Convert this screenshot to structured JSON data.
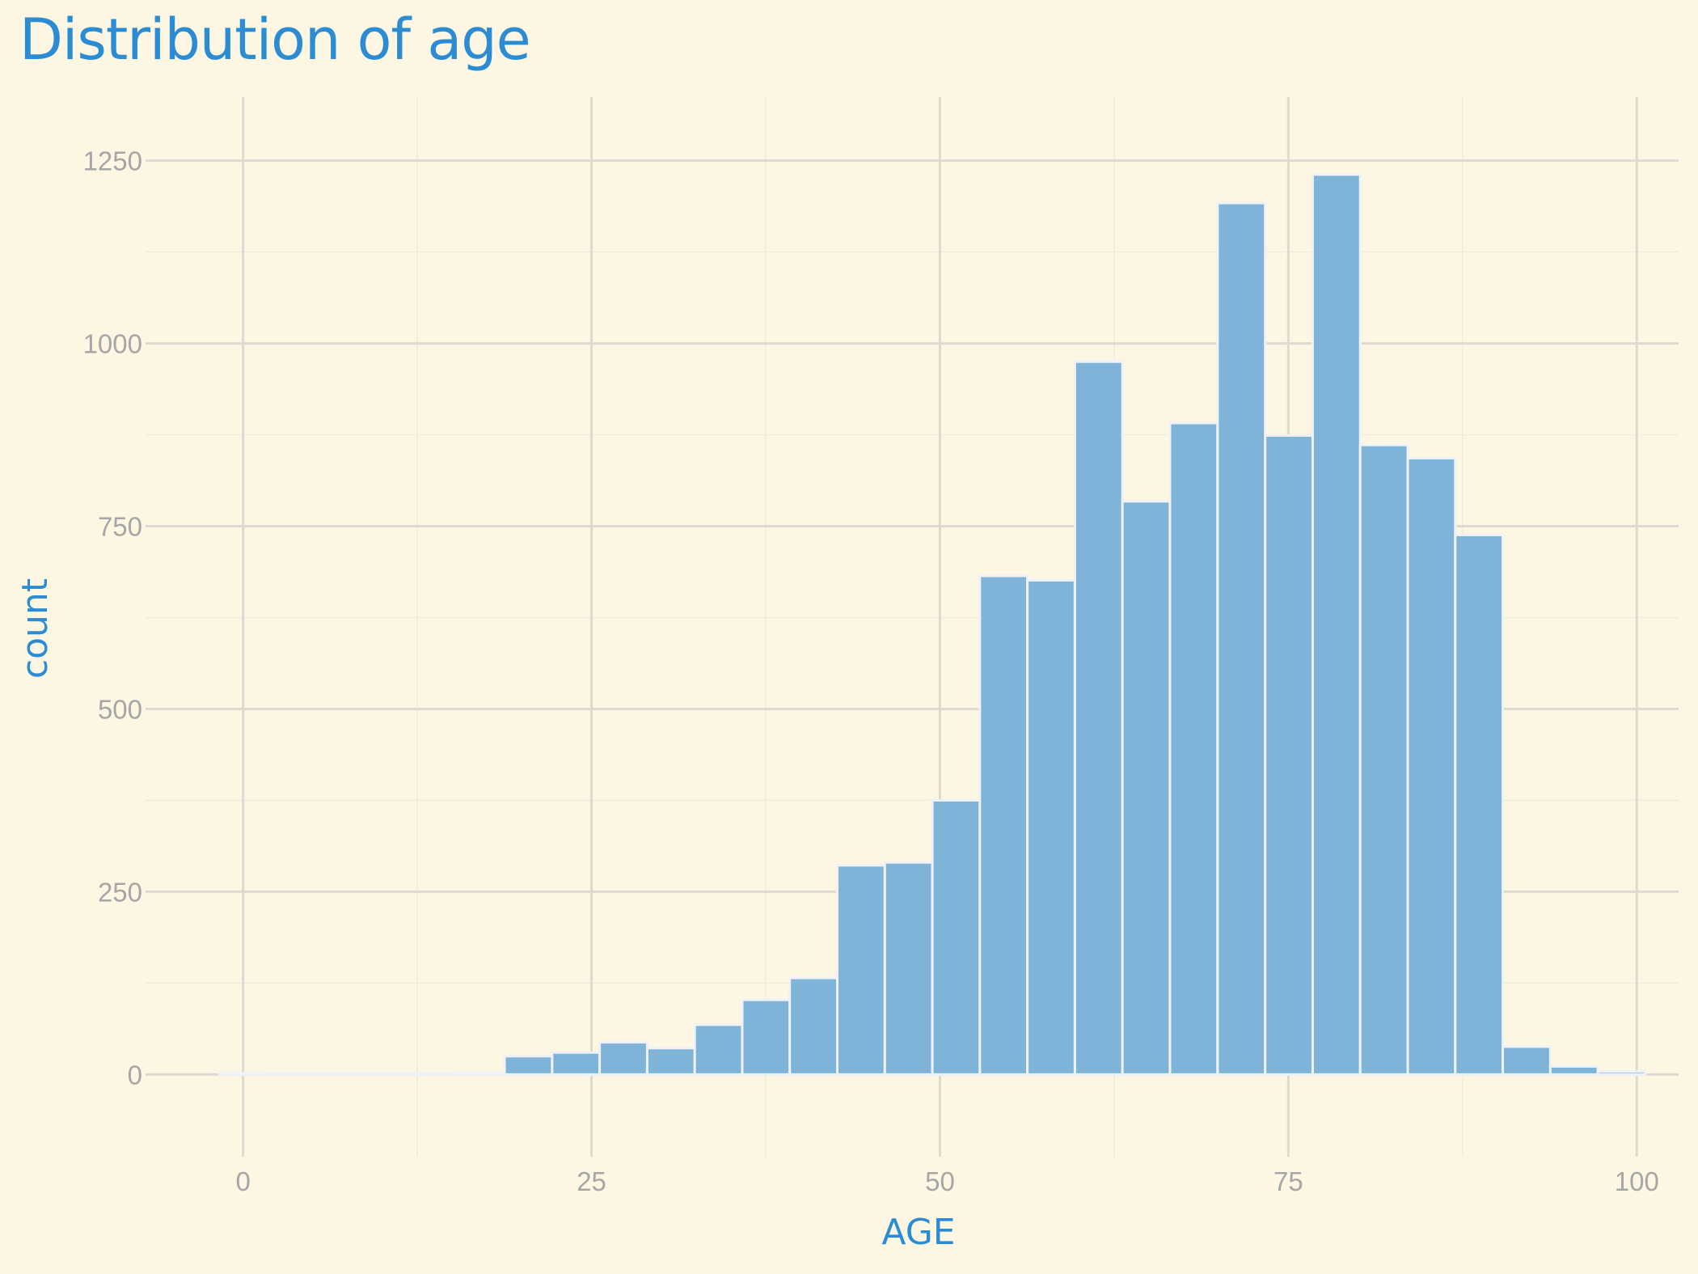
{
  "chart_data": {
    "type": "bar",
    "title": "Distribution of age",
    "xlabel": "AGE",
    "ylabel": "count",
    "xlim": [
      -7,
      103
    ],
    "ylim": [
      -112.5,
      1337
    ],
    "x_ticks": [
      0,
      25,
      50,
      75,
      100
    ],
    "y_ticks": [
      0,
      250,
      500,
      750,
      1000,
      1250
    ],
    "grid": true,
    "bin_width": 3.41,
    "bins": [
      {
        "x": 0.0,
        "count": 2
      },
      {
        "x": 3.41,
        "count": 0
      },
      {
        "x": 6.82,
        "count": 0
      },
      {
        "x": 10.23,
        "count": 0
      },
      {
        "x": 13.64,
        "count": 0
      },
      {
        "x": 17.05,
        "count": 3
      },
      {
        "x": 20.47,
        "count": 25
      },
      {
        "x": 23.88,
        "count": 30
      },
      {
        "x": 27.29,
        "count": 44
      },
      {
        "x": 30.7,
        "count": 36
      },
      {
        "x": 34.11,
        "count": 68
      },
      {
        "x": 37.52,
        "count": 102
      },
      {
        "x": 40.93,
        "count": 132
      },
      {
        "x": 44.34,
        "count": 286
      },
      {
        "x": 47.75,
        "count": 290
      },
      {
        "x": 51.16,
        "count": 375
      },
      {
        "x": 54.57,
        "count": 682
      },
      {
        "x": 57.98,
        "count": 676
      },
      {
        "x": 61.39,
        "count": 975
      },
      {
        "x": 64.8,
        "count": 784
      },
      {
        "x": 68.21,
        "count": 891
      },
      {
        "x": 71.63,
        "count": 1192
      },
      {
        "x": 75.04,
        "count": 874
      },
      {
        "x": 78.45,
        "count": 1231
      },
      {
        "x": 81.86,
        "count": 861
      },
      {
        "x": 85.27,
        "count": 843
      },
      {
        "x": 88.68,
        "count": 738
      },
      {
        "x": 92.09,
        "count": 38
      },
      {
        "x": 95.5,
        "count": 11
      },
      {
        "x": 98.91,
        "count": 4
      }
    ],
    "colors": {
      "background": "#fdf6e3",
      "bar_fill": "#7fb3d8",
      "bar_stroke": "#eef2f6",
      "grid_major": "#dedad1",
      "grid_minor": "#efebdf",
      "tick_text": "#a6a6a6",
      "title_text": "#2b8cd3"
    }
  }
}
